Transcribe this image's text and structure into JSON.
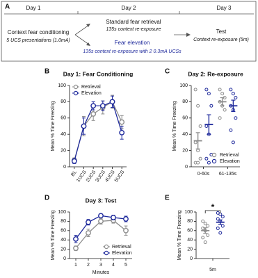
{
  "diagram": {
    "label": "A",
    "days": [
      "Day 1",
      "Day 2",
      "Day 3"
    ],
    "steps": [
      {
        "title": "Context fear conditioning",
        "detail": "5 UCS presentations (1.0mA)"
      },
      {
        "title": "Standard fear retrieval",
        "detail": "135s context re-exposure"
      },
      {
        "title": "Fear elevation",
        "detail": "135s context re-exposure with 2 0.3mA UCSs"
      },
      {
        "title": "Test",
        "detail": "Context re-exposure (5m)"
      }
    ]
  },
  "chart_data": [
    {
      "type": "line",
      "panel": "B",
      "title": "Day 1: Fear Conditioning",
      "y_label": "Mean % Time Freezing",
      "categories": [
        "BL",
        "1UCS",
        "2UCS",
        "3UCS",
        "4UCS",
        "5UCS"
      ],
      "series": [
        {
          "name": "Retrieval",
          "color": "#8c8c8c",
          "values": [
            8,
            50,
            65,
            73,
            80,
            55
          ],
          "errors": [
            3,
            12,
            8,
            8,
            8,
            8
          ]
        },
        {
          "name": "Elevation",
          "color": "#1f2a9c",
          "values": [
            7,
            50,
            75,
            75,
            80,
            42
          ],
          "errors": [
            3,
            10,
            5,
            6,
            7,
            8
          ]
        }
      ],
      "ylim": [
        0,
        100
      ],
      "yticks": [
        0,
        20,
        40,
        60,
        80,
        100
      ],
      "legend": "upper left"
    },
    {
      "type": "dot",
      "panel": "C",
      "title": "Day 2: Re-exposure",
      "y_label": "Mean % Time Freezing",
      "categories": [
        "0-60s",
        "61-135s"
      ],
      "series": [
        {
          "name": "Retrieval",
          "color": "#8c8c8c",
          "values": [
            32,
            80
          ],
          "errors": [
            10,
            5
          ],
          "points": [
            [
              95,
              75,
              50,
              30,
              20,
              10,
              5,
              5
            ],
            [
              95,
              90,
              85,
              80,
              75,
              70,
              60
            ]
          ]
        },
        {
          "name": "Elevation",
          "color": "#1f2a9c",
          "values": [
            52,
            75
          ],
          "errors": [
            12,
            7
          ],
          "points": [
            [
              95,
              90,
              75,
              50,
              40,
              15,
              10,
              5
            ],
            [
              95,
              90,
              85,
              75,
              70,
              60,
              45,
              30
            ]
          ]
        }
      ],
      "ylim": [
        0,
        100
      ],
      "yticks": [
        0,
        20,
        40,
        60,
        80,
        100
      ],
      "legend": "lower right"
    },
    {
      "type": "line",
      "panel": "D",
      "title": "Day 3: Test",
      "y_label": "Mean % Time Freezing",
      "x_label": "Minutes",
      "x": [
        1,
        2,
        3,
        4,
        5
      ],
      "xlim": [
        0.5,
        5.5
      ],
      "xticks": [
        1,
        2,
        3,
        4,
        5
      ],
      "series": [
        {
          "name": "Retrieval",
          "color": "#8c8c8c",
          "values": [
            22,
            55,
            80,
            82,
            60
          ],
          "errors": [
            5,
            8,
            6,
            6,
            10
          ]
        },
        {
          "name": "Elevation",
          "color": "#1f2a9c",
          "values": [
            42,
            78,
            92,
            88,
            85
          ],
          "errors": [
            8,
            6,
            4,
            5,
            6
          ]
        }
      ],
      "ylim": [
        0,
        100
      ],
      "yticks": [
        0,
        20,
        40,
        60,
        80,
        100
      ],
      "legend": "lower right"
    },
    {
      "type": "dot",
      "panel": "E",
      "y_label": "Mean % Time Freezing",
      "categories": [
        "5m"
      ],
      "series": [
        {
          "name": "Retrieval",
          "color": "#8c8c8c",
          "values": [
            60
          ],
          "errors": [
            6
          ],
          "points": [
            [
              80,
              75,
              70,
              65,
              60,
              50,
              45,
              35
            ]
          ]
        },
        {
          "name": "Elevation",
          "color": "#1f2a9c",
          "values": [
            78
          ],
          "errors": [
            5
          ],
          "points": [
            [
              98,
              95,
              90,
              85,
              80,
              70,
              65,
              55
            ]
          ]
        }
      ],
      "ylim": [
        0,
        100
      ],
      "yticks": [
        0,
        20,
        40,
        60,
        80,
        100
      ],
      "annotation": "*"
    }
  ]
}
